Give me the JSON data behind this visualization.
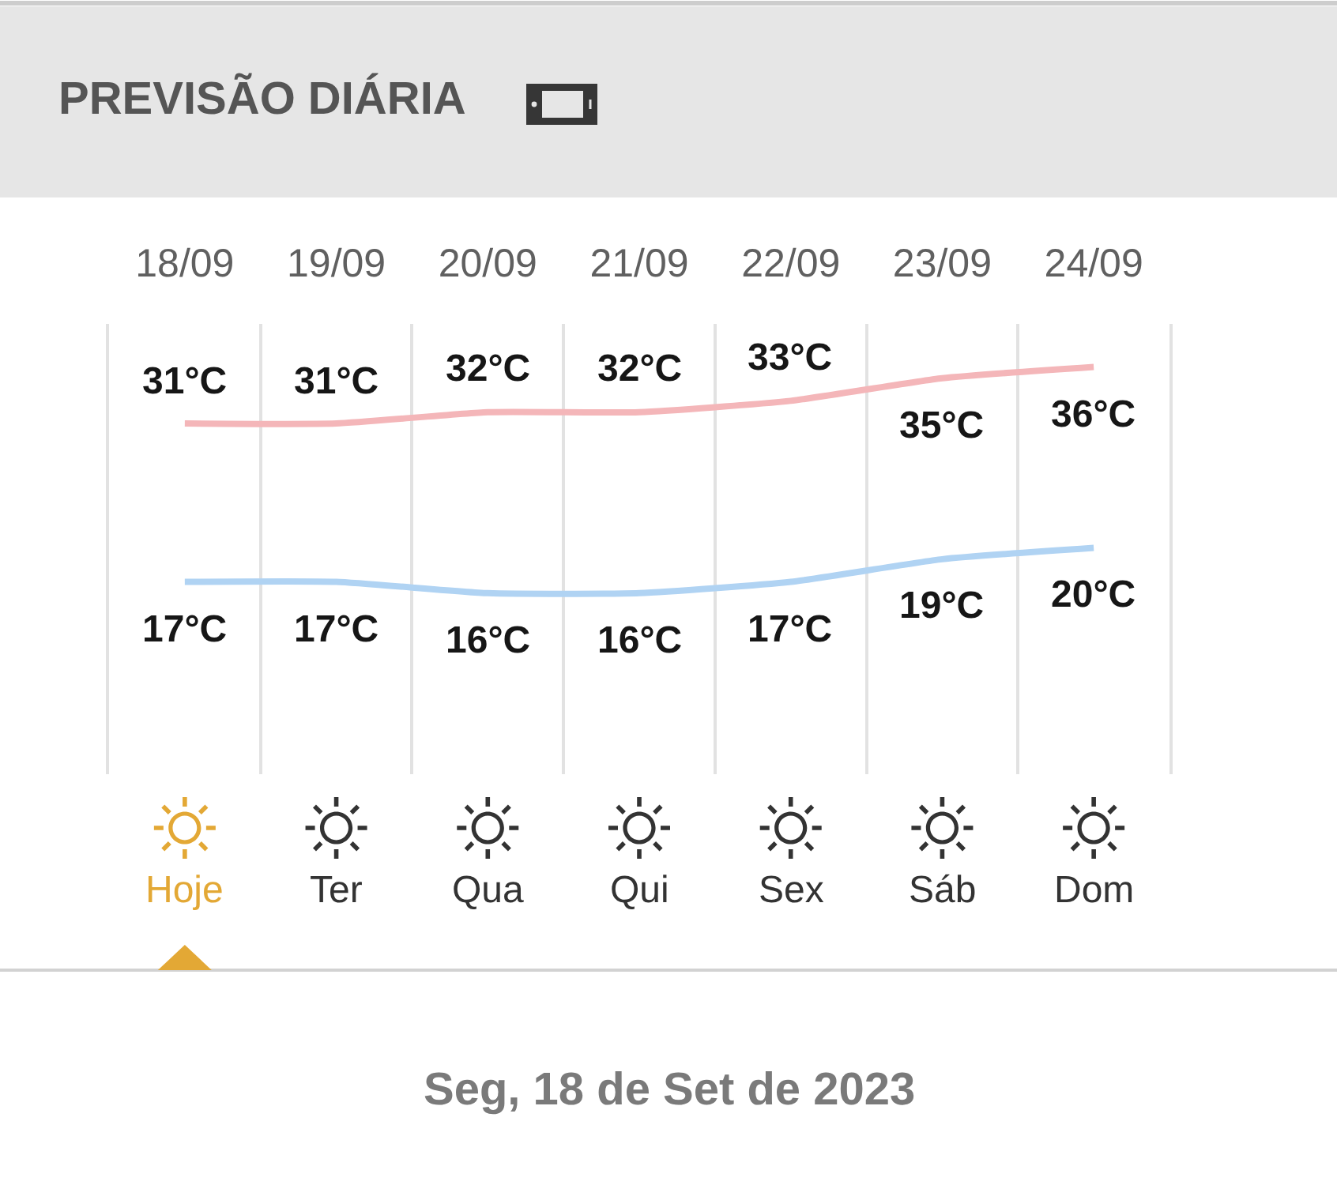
{
  "chart_data": {
    "type": "line",
    "title": "PREVISÃO DIÁRIA",
    "categories": [
      "18/09",
      "19/09",
      "20/09",
      "21/09",
      "22/09",
      "23/09",
      "24/09"
    ],
    "series": [
      {
        "color": "#f4b6b9",
        "values": [
          31,
          31,
          32,
          32,
          33,
          35,
          36
        ],
        "value_labels": [
          "31°C",
          "31°C",
          "32°C",
          "32°C",
          "33°C",
          "35°C",
          "36°C"
        ]
      },
      {
        "color": "#b0d3f3",
        "values": [
          17,
          17,
          16,
          16,
          17,
          19,
          20
        ],
        "value_labels": [
          "17°C",
          "17°C",
          "16°C",
          "16°C",
          "17°C",
          "19°C",
          "20°C"
        ]
      }
    ],
    "annotations": [
      "Hoje",
      "Ter",
      "Qua",
      "Qui",
      "Sex",
      "Sáb",
      "Dom",
      "Seg, 18 de Set de 2023"
    ],
    "grid": "x",
    "line_style": "solid"
  }
}
